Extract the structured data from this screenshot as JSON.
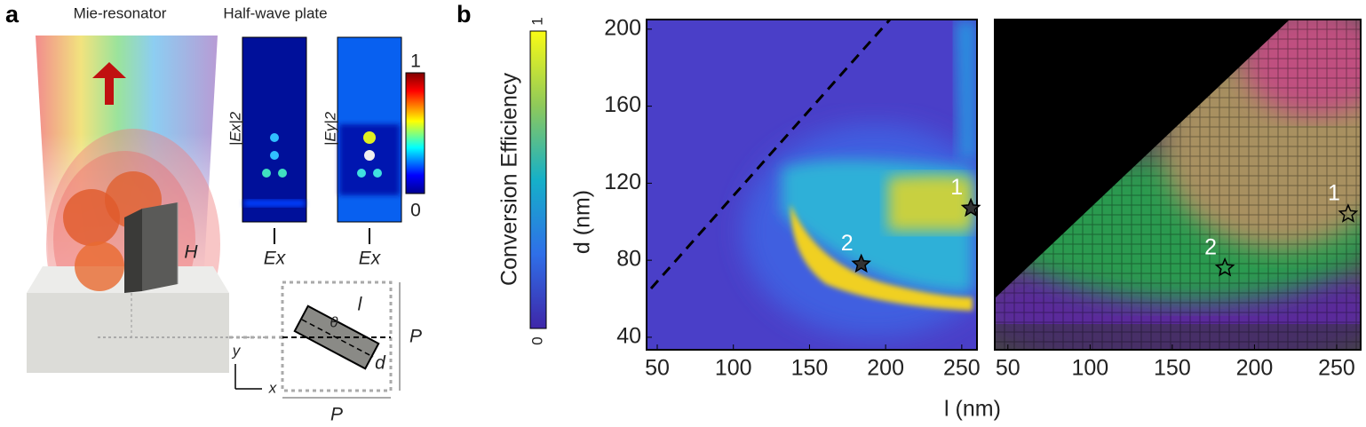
{
  "panel_a": {
    "label": "a",
    "title_left": "Mie-resonator",
    "title_right": "Half-wave plate",
    "field_labels": [
      "|Ex|2",
      "|Ey|2"
    ],
    "source_labels": [
      "Ex",
      "Ex"
    ],
    "colorbar_ticks": [
      "1",
      "0"
    ],
    "height_label": "H",
    "geometry": {
      "length": "l",
      "angle": "θ",
      "width": "d",
      "period_y": "P",
      "period_x": "P",
      "axis_y": "y",
      "axis_x": "x"
    }
  },
  "panel_b": {
    "label": "b",
    "heatmap": {
      "type": "heatmap",
      "colorbar_label": "Conversion Efficiency",
      "colorbar_ticks": [
        0,
        1
      ],
      "ylabel": "d (nm)",
      "xlim": [
        43,
        260
      ],
      "ylim": [
        33.5,
        205
      ],
      "xticks": [
        50,
        100,
        150,
        200,
        250
      ],
      "yticks": [
        40,
        80,
        120,
        160,
        200
      ],
      "markers": [
        {
          "label": "1",
          "x": 256,
          "y": 107
        },
        {
          "label": "2",
          "x": 184,
          "y": 78
        }
      ]
    },
    "color_map": {
      "type": "heatmap",
      "xlabel": "l (nm)",
      "xlim": [
        42,
        264.6
      ],
      "ylim": [
        33.5,
        205
      ],
      "xticks": [
        50,
        100,
        150,
        200,
        250
      ],
      "markers": [
        {
          "label": "1",
          "x": 257,
          "y": 104
        },
        {
          "label": "2",
          "x": 182,
          "y": 76
        }
      ]
    }
  }
}
